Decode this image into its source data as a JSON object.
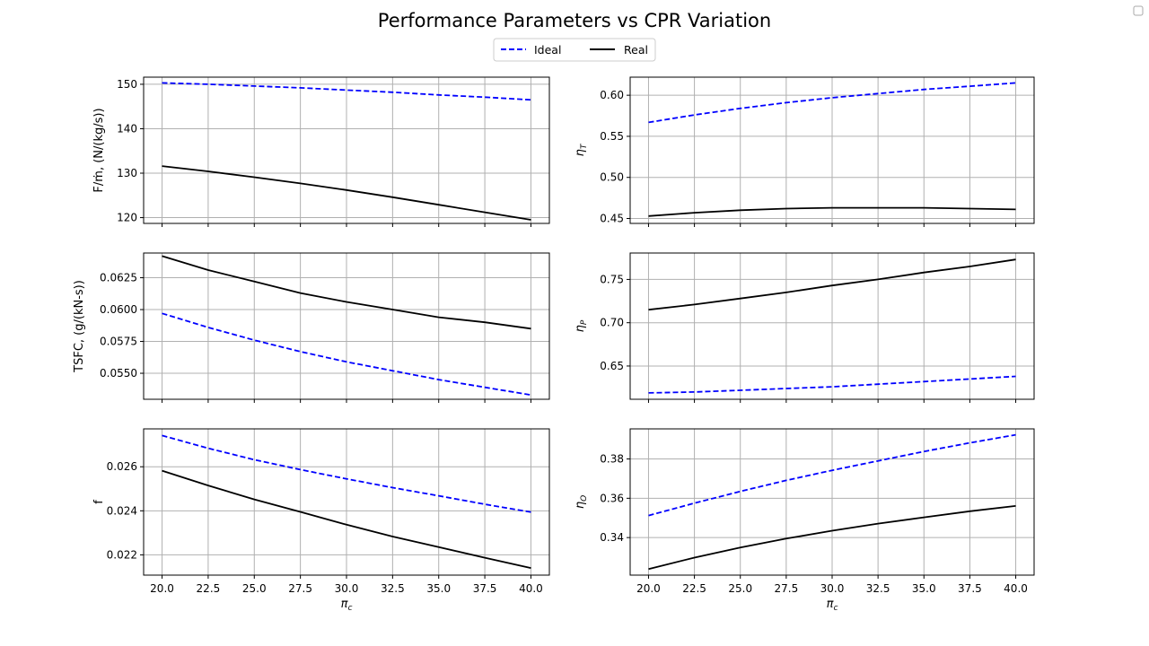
{
  "figure": {
    "title": "Performance Parameters vs CPR Variation",
    "legend": {
      "placement": "top-center",
      "entries": [
        {
          "label": "Ideal",
          "color": "#0000ff",
          "style": "dashed"
        },
        {
          "label": "Real",
          "color": "#000000",
          "style": "solid"
        }
      ]
    }
  },
  "chart_data": [
    {
      "type": "line",
      "panel": "row1-left",
      "ylabel": "F/ṁ, (N/(kg/s))",
      "xlabel": "",
      "x": [
        20,
        22.5,
        25,
        27.5,
        30,
        32.5,
        35,
        37.5,
        40
      ],
      "xticks": [
        "20.0",
        "22.5",
        "25.0",
        "27.5",
        "30.0",
        "32.5",
        "35.0",
        "37.5",
        "40.0"
      ],
      "xlim": [
        19.0,
        41.0
      ],
      "ylim": [
        118.7,
        151.6
      ],
      "yticks": [
        120,
        130,
        140,
        150
      ],
      "ytick_decimals": 0,
      "grid": true,
      "show_xtick_labels": false,
      "series": [
        {
          "name": "Ideal",
          "color": "#0000ff",
          "dashed": true,
          "values": [
            150.3,
            150.0,
            149.6,
            149.2,
            148.7,
            148.2,
            147.6,
            147.1,
            146.5
          ]
        },
        {
          "name": "Real",
          "color": "#000000",
          "dashed": false,
          "values": [
            131.6,
            130.4,
            129.1,
            127.7,
            126.2,
            124.6,
            122.9,
            121.2,
            119.5
          ]
        }
      ]
    },
    {
      "type": "line",
      "panel": "row1-right",
      "ylabel": "ηT",
      "ylabel_main": "η",
      "ylabel_sub": "T",
      "xlabel": "",
      "x": [
        20,
        22.5,
        25,
        27.5,
        30,
        32.5,
        35,
        37.5,
        40
      ],
      "xticks": [
        "20.0",
        "22.5",
        "25.0",
        "27.5",
        "30.0",
        "32.5",
        "35.0",
        "37.5",
        "40.0"
      ],
      "xlim": [
        19.0,
        41.0
      ],
      "ylim": [
        0.444,
        0.622
      ],
      "yticks": [
        0.45,
        0.5,
        0.55,
        0.6
      ],
      "ytick_decimals": 2,
      "grid": true,
      "show_xtick_labels": false,
      "series": [
        {
          "name": "Ideal",
          "color": "#0000ff",
          "dashed": true,
          "values": [
            0.567,
            0.576,
            0.584,
            0.591,
            0.597,
            0.602,
            0.607,
            0.611,
            0.615
          ]
        },
        {
          "name": "Real",
          "color": "#000000",
          "dashed": false,
          "values": [
            0.453,
            0.457,
            0.46,
            0.462,
            0.463,
            0.463,
            0.463,
            0.462,
            0.461
          ]
        }
      ]
    },
    {
      "type": "line",
      "panel": "row2-left",
      "ylabel": "TSFC, (g/(kN-s))",
      "xlabel": "",
      "x": [
        20,
        22.5,
        25,
        27.5,
        30,
        32.5,
        35,
        37.5,
        40
      ],
      "xticks": [
        "20.0",
        "22.5",
        "25.0",
        "27.5",
        "30.0",
        "32.5",
        "35.0",
        "37.5",
        "40.0"
      ],
      "xlim": [
        19.0,
        41.0
      ],
      "ylim": [
        0.05296,
        0.06444
      ],
      "yticks": [
        0.055,
        0.0575,
        0.06,
        0.0625
      ],
      "ytick_decimals": 4,
      "grid": true,
      "show_xtick_labels": false,
      "series": [
        {
          "name": "Ideal",
          "color": "#0000ff",
          "dashed": true,
          "values": [
            0.0597,
            0.0586,
            0.0576,
            0.0567,
            0.0559,
            0.0552,
            0.0545,
            0.0539,
            0.0533
          ]
        },
        {
          "name": "Real",
          "color": "#000000",
          "dashed": false,
          "values": [
            0.0642,
            0.0631,
            0.0622,
            0.0613,
            0.0606,
            0.06,
            0.0594,
            0.059,
            0.0585
          ]
        }
      ]
    },
    {
      "type": "line",
      "panel": "row2-right",
      "ylabel": "ηP",
      "ylabel_main": "η",
      "ylabel_sub": "P",
      "xlabel": "",
      "x": [
        20,
        22.5,
        25,
        27.5,
        30,
        32.5,
        35,
        37.5,
        40
      ],
      "xticks": [
        "20.0",
        "22.5",
        "25.0",
        "27.5",
        "30.0",
        "32.5",
        "35.0",
        "37.5",
        "40.0"
      ],
      "xlim": [
        19.0,
        41.0
      ],
      "ylim": [
        0.6116,
        0.7805
      ],
      "yticks": [
        0.65,
        0.7,
        0.75
      ],
      "ytick_decimals": 2,
      "grid": true,
      "show_xtick_labels": false,
      "series": [
        {
          "name": "Ideal",
          "color": "#0000ff",
          "dashed": true,
          "values": [
            0.619,
            0.62,
            0.622,
            0.624,
            0.626,
            0.629,
            0.632,
            0.635,
            0.638
          ]
        },
        {
          "name": "Real",
          "color": "#000000",
          "dashed": false,
          "values": [
            0.715,
            0.721,
            0.728,
            0.735,
            0.743,
            0.75,
            0.758,
            0.765,
            0.773
          ]
        }
      ]
    },
    {
      "type": "line",
      "panel": "row3-left",
      "ylabel": "f",
      "xlabel": "πc",
      "xlabel_main": "π",
      "xlabel_sub": "c",
      "x": [
        20,
        22.5,
        25,
        27.5,
        30,
        32.5,
        35,
        37.5,
        40
      ],
      "xticks": [
        "20.0",
        "22.5",
        "25.0",
        "27.5",
        "30.0",
        "32.5",
        "35.0",
        "37.5",
        "40.0"
      ],
      "xlim": [
        19.0,
        41.0
      ],
      "ylim": [
        0.02108,
        0.02772
      ],
      "yticks": [
        0.022,
        0.024,
        0.026
      ],
      "ytick_decimals": 3,
      "grid": true,
      "show_xtick_labels": true,
      "series": [
        {
          "name": "Ideal",
          "color": "#0000ff",
          "dashed": true,
          "values": [
            0.02742,
            0.02684,
            0.02632,
            0.02587,
            0.02545,
            0.02505,
            0.02468,
            0.0243,
            0.02394
          ]
        },
        {
          "name": "Real",
          "color": "#000000",
          "dashed": false,
          "values": [
            0.02582,
            0.02515,
            0.02452,
            0.02395,
            0.02337,
            0.02283,
            0.02235,
            0.02187,
            0.0214
          ]
        }
      ]
    },
    {
      "type": "line",
      "panel": "row3-right",
      "ylabel": "ηO",
      "ylabel_main": "η",
      "ylabel_sub": "O",
      "xlabel": "πc",
      "xlabel_main": "π",
      "xlabel_sub": "c",
      "x": [
        20,
        22.5,
        25,
        27.5,
        30,
        32.5,
        35,
        37.5,
        40
      ],
      "xticks": [
        "20.0",
        "22.5",
        "25.0",
        "27.5",
        "30.0",
        "32.5",
        "35.0",
        "37.5",
        "40.0"
      ],
      "xlim": [
        19.0,
        41.0
      ],
      "ylim": [
        0.3209,
        0.3953
      ],
      "yticks": [
        0.34,
        0.36,
        0.38
      ],
      "ytick_decimals": 2,
      "grid": true,
      "show_xtick_labels": true,
      "series": [
        {
          "name": "Ideal",
          "color": "#0000ff",
          "dashed": true,
          "values": [
            0.3512,
            0.3575,
            0.3635,
            0.3691,
            0.3742,
            0.379,
            0.3838,
            0.3882,
            0.3923
          ]
        },
        {
          "name": "Real",
          "color": "#000000",
          "dashed": false,
          "values": [
            0.324,
            0.3298,
            0.3349,
            0.3395,
            0.3435,
            0.3471,
            0.3503,
            0.3534,
            0.3561
          ]
        }
      ]
    }
  ]
}
